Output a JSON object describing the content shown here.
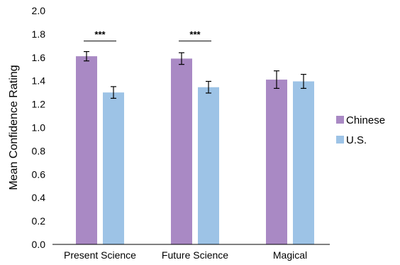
{
  "chart_data": {
    "type": "bar",
    "title": "",
    "xlabel": "",
    "ylabel": "Mean Confidence Rating",
    "ylim": [
      0,
      2.0
    ],
    "yticks": [
      "0.0",
      "0.2",
      "0.4",
      "0.6",
      "0.8",
      "1.0",
      "1.2",
      "1.4",
      "1.6",
      "1.8",
      "2.0"
    ],
    "categories": [
      "Present Science",
      "Future Science",
      "Magical"
    ],
    "series": [
      {
        "name": "Chinese",
        "color": "#a989c4",
        "values": [
          1.61,
          1.59,
          1.41
        ],
        "errors": [
          0.04,
          0.05,
          0.075
        ]
      },
      {
        "name": "U.S.",
        "color": "#9dc3e6",
        "values": [
          1.3,
          1.345,
          1.395
        ],
        "errors": [
          0.05,
          0.05,
          0.06
        ]
      }
    ],
    "significance": [
      {
        "category_index": 0,
        "label": "***",
        "y": 1.74
      },
      {
        "category_index": 1,
        "label": "***",
        "y": 1.74
      }
    ],
    "legend_position": "right",
    "grid": false
  }
}
